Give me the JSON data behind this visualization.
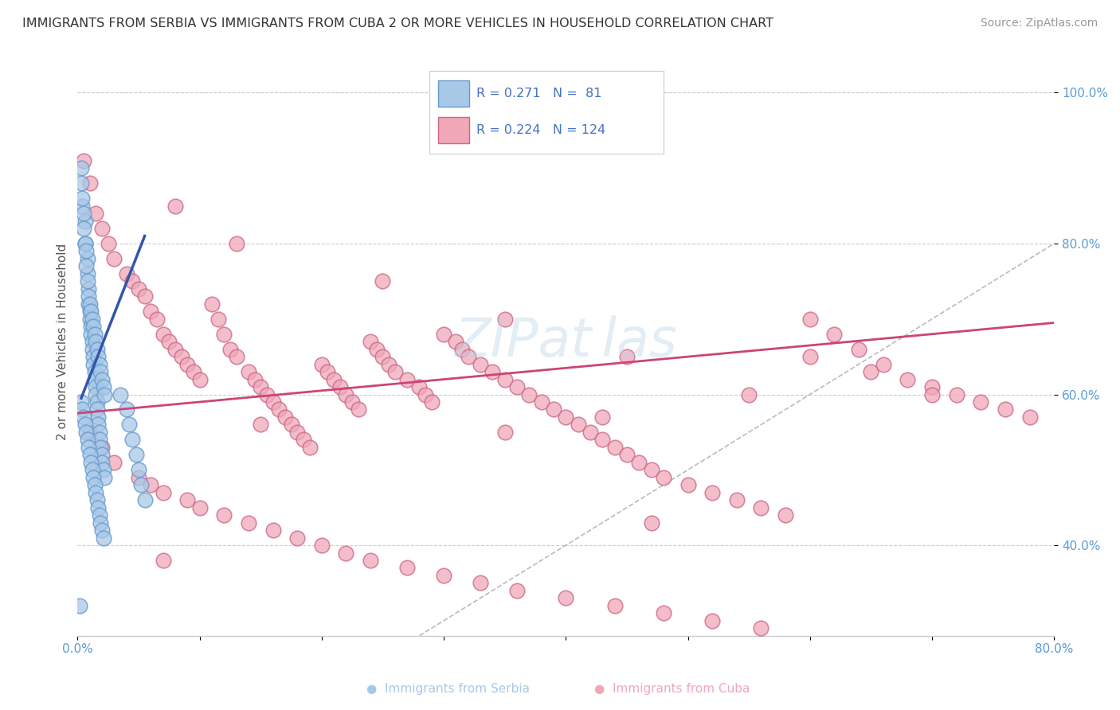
{
  "title": "IMMIGRANTS FROM SERBIA VS IMMIGRANTS FROM CUBA 2 OR MORE VEHICLES IN HOUSEHOLD CORRELATION CHART",
  "source": "Source: ZipAtlas.com",
  "ylabel": "2 or more Vehicles in Household",
  "xlim": [
    0.0,
    0.8
  ],
  "ylim": [
    0.28,
    1.06
  ],
  "xticks": [
    0.0,
    0.1,
    0.2,
    0.3,
    0.4,
    0.5,
    0.6,
    0.7,
    0.8
  ],
  "xticklabels": [
    "0.0%",
    "",
    "",
    "",
    "",
    "",
    "",
    "",
    "80.0%"
  ],
  "yticks": [
    0.4,
    0.6,
    0.8,
    1.0
  ],
  "yticklabels": [
    "40.0%",
    "60.0%",
    "80.0%",
    "100.0%"
  ],
  "serbia_color": "#A8C8E8",
  "serbia_edge_color": "#6699CC",
  "cuba_color": "#F0A8B8",
  "cuba_edge_color": "#CC6688",
  "serbia_line_color": "#3355AA",
  "cuba_line_color": "#CC4477",
  "ref_line_color": "#BBBBBB",
  "legend_text_color": "#4472C4",
  "grid_color": "#CCCCCC",
  "R_serbia": 0.271,
  "N_serbia": 81,
  "R_cuba": 0.224,
  "N_cuba": 124,
  "serbia_line_x0": 0.003,
  "serbia_line_y0": 0.595,
  "serbia_line_x1": 0.055,
  "serbia_line_y1": 0.81,
  "cuba_line_x0": 0.0,
  "cuba_line_y0": 0.575,
  "cuba_line_x1": 0.8,
  "cuba_line_y1": 0.695,
  "serbia_x": [
    0.004,
    0.006,
    0.006,
    0.008,
    0.008,
    0.009,
    0.009,
    0.01,
    0.01,
    0.011,
    0.011,
    0.012,
    0.012,
    0.013,
    0.013,
    0.014,
    0.014,
    0.015,
    0.015,
    0.016,
    0.016,
    0.017,
    0.017,
    0.018,
    0.018,
    0.019,
    0.02,
    0.02,
    0.021,
    0.022,
    0.003,
    0.003,
    0.004,
    0.005,
    0.005,
    0.006,
    0.007,
    0.007,
    0.008,
    0.009,
    0.01,
    0.011,
    0.012,
    0.013,
    0.014,
    0.015,
    0.016,
    0.017,
    0.018,
    0.019,
    0.02,
    0.021,
    0.022,
    0.003,
    0.004,
    0.005,
    0.006,
    0.007,
    0.008,
    0.009,
    0.01,
    0.011,
    0.012,
    0.013,
    0.014,
    0.015,
    0.016,
    0.017,
    0.018,
    0.019,
    0.02,
    0.021,
    0.035,
    0.04,
    0.042,
    0.045,
    0.048,
    0.05,
    0.052,
    0.055,
    0.002
  ],
  "serbia_y": [
    0.85,
    0.83,
    0.8,
    0.78,
    0.76,
    0.74,
    0.72,
    0.71,
    0.7,
    0.69,
    0.68,
    0.67,
    0.66,
    0.65,
    0.64,
    0.63,
    0.62,
    0.61,
    0.6,
    0.59,
    0.58,
    0.57,
    0.56,
    0.55,
    0.54,
    0.53,
    0.52,
    0.51,
    0.5,
    0.49,
    0.9,
    0.88,
    0.86,
    0.84,
    0.82,
    0.8,
    0.79,
    0.77,
    0.75,
    0.73,
    0.72,
    0.71,
    0.7,
    0.69,
    0.68,
    0.67,
    0.66,
    0.65,
    0.64,
    0.63,
    0.62,
    0.61,
    0.6,
    0.59,
    0.58,
    0.57,
    0.56,
    0.55,
    0.54,
    0.53,
    0.52,
    0.51,
    0.5,
    0.49,
    0.48,
    0.47,
    0.46,
    0.45,
    0.44,
    0.43,
    0.42,
    0.41,
    0.6,
    0.58,
    0.56,
    0.54,
    0.52,
    0.5,
    0.48,
    0.46,
    0.32
  ],
  "cuba_x": [
    0.005,
    0.01,
    0.015,
    0.02,
    0.025,
    0.03,
    0.04,
    0.045,
    0.05,
    0.055,
    0.06,
    0.065,
    0.07,
    0.075,
    0.08,
    0.085,
    0.09,
    0.095,
    0.1,
    0.11,
    0.115,
    0.12,
    0.125,
    0.13,
    0.14,
    0.145,
    0.15,
    0.155,
    0.16,
    0.165,
    0.17,
    0.175,
    0.18,
    0.185,
    0.19,
    0.2,
    0.205,
    0.21,
    0.215,
    0.22,
    0.225,
    0.23,
    0.24,
    0.245,
    0.25,
    0.255,
    0.26,
    0.27,
    0.28,
    0.285,
    0.29,
    0.3,
    0.31,
    0.315,
    0.32,
    0.33,
    0.34,
    0.35,
    0.36,
    0.37,
    0.38,
    0.39,
    0.4,
    0.41,
    0.42,
    0.43,
    0.44,
    0.45,
    0.46,
    0.47,
    0.48,
    0.5,
    0.52,
    0.54,
    0.56,
    0.58,
    0.6,
    0.62,
    0.64,
    0.66,
    0.68,
    0.7,
    0.72,
    0.74,
    0.76,
    0.78,
    0.01,
    0.02,
    0.03,
    0.05,
    0.06,
    0.07,
    0.09,
    0.1,
    0.12,
    0.14,
    0.16,
    0.18,
    0.2,
    0.22,
    0.24,
    0.27,
    0.3,
    0.33,
    0.36,
    0.4,
    0.44,
    0.48,
    0.52,
    0.56,
    0.6,
    0.65,
    0.7,
    0.08,
    0.13,
    0.25,
    0.35,
    0.45,
    0.55,
    0.43,
    0.15,
    0.35,
    0.07,
    0.47
  ],
  "cuba_y": [
    0.91,
    0.88,
    0.84,
    0.82,
    0.8,
    0.78,
    0.76,
    0.75,
    0.74,
    0.73,
    0.71,
    0.7,
    0.68,
    0.67,
    0.66,
    0.65,
    0.64,
    0.63,
    0.62,
    0.72,
    0.7,
    0.68,
    0.66,
    0.65,
    0.63,
    0.62,
    0.61,
    0.6,
    0.59,
    0.58,
    0.57,
    0.56,
    0.55,
    0.54,
    0.53,
    0.64,
    0.63,
    0.62,
    0.61,
    0.6,
    0.59,
    0.58,
    0.67,
    0.66,
    0.65,
    0.64,
    0.63,
    0.62,
    0.61,
    0.6,
    0.59,
    0.68,
    0.67,
    0.66,
    0.65,
    0.64,
    0.63,
    0.62,
    0.61,
    0.6,
    0.59,
    0.58,
    0.57,
    0.56,
    0.55,
    0.54,
    0.53,
    0.52,
    0.51,
    0.5,
    0.49,
    0.48,
    0.47,
    0.46,
    0.45,
    0.44,
    0.7,
    0.68,
    0.66,
    0.64,
    0.62,
    0.61,
    0.6,
    0.59,
    0.58,
    0.57,
    0.55,
    0.53,
    0.51,
    0.49,
    0.48,
    0.47,
    0.46,
    0.45,
    0.44,
    0.43,
    0.42,
    0.41,
    0.4,
    0.39,
    0.38,
    0.37,
    0.36,
    0.35,
    0.34,
    0.33,
    0.32,
    0.31,
    0.3,
    0.29,
    0.65,
    0.63,
    0.6,
    0.85,
    0.8,
    0.75,
    0.7,
    0.65,
    0.6,
    0.57,
    0.56,
    0.55,
    0.38,
    0.43
  ]
}
